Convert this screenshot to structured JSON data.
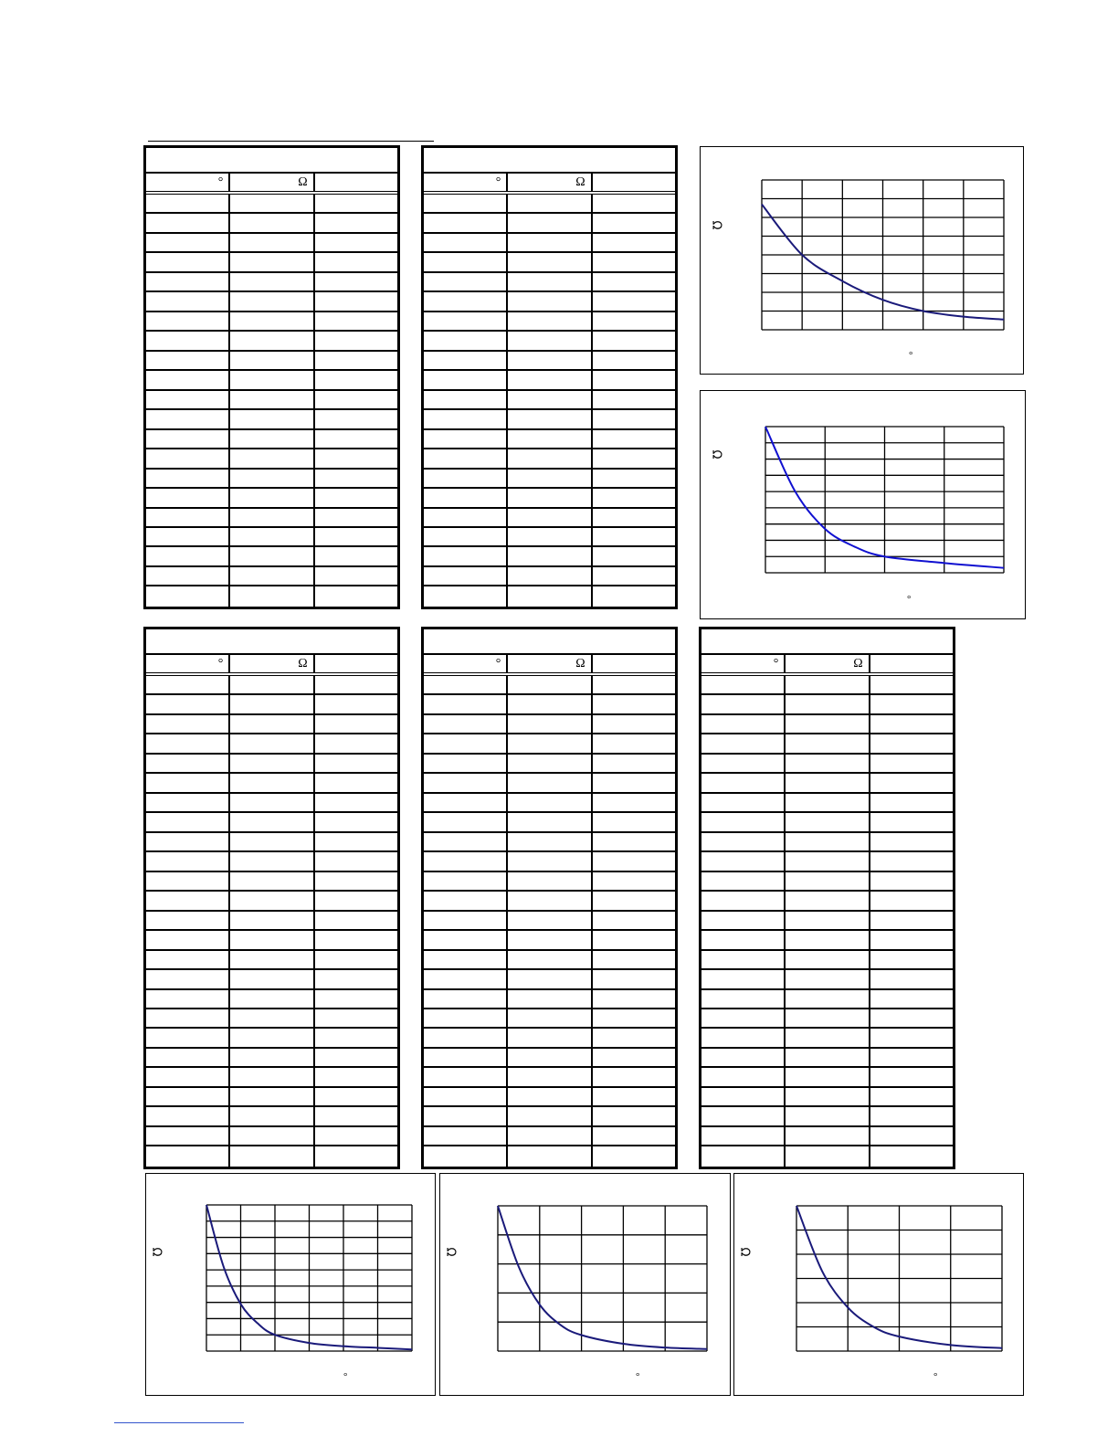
{
  "symbols": {
    "degree": "°",
    "ohm": "Ω"
  },
  "tables": [
    {
      "id": "t1",
      "headers": [
        "°",
        "Ω",
        ""
      ],
      "rows": 21
    },
    {
      "id": "t2",
      "headers": [
        "°",
        "Ω",
        ""
      ],
      "rows": 21
    },
    {
      "id": "t3",
      "headers": [
        "°",
        "Ω",
        ""
      ],
      "rows": 25
    },
    {
      "id": "t4",
      "headers": [
        "°",
        "Ω",
        ""
      ],
      "rows": 25
    },
    {
      "id": "t5",
      "headers": [
        "°",
        "Ω",
        ""
      ],
      "rows": 25
    }
  ],
  "chart_data": [
    {
      "type": "line",
      "xlabel": "°",
      "ylabel": "Ω",
      "grid": true,
      "xlim": [
        0,
        6
      ],
      "ylim": [
        0,
        8
      ],
      "x": [
        0,
        1,
        2,
        3,
        4,
        5,
        6
      ],
      "values": [
        6.7,
        4.0,
        2.6,
        1.6,
        1.0,
        0.7,
        0.55
      ],
      "line_color": "#1a1a7a"
    },
    {
      "type": "line",
      "xlabel": "°",
      "ylabel": "Ω",
      "grid": true,
      "xlim": [
        0,
        4
      ],
      "ylim": [
        0,
        9
      ],
      "x": [
        0,
        0.5,
        1,
        1.5,
        2,
        3,
        4
      ],
      "values": [
        9,
        5.0,
        2.7,
        1.6,
        1.0,
        0.6,
        0.3
      ],
      "line_color": "#1010d0"
    },
    {
      "type": "line",
      "xlabel": "°",
      "ylabel": "Ω",
      "grid": true,
      "xlim": [
        0,
        6
      ],
      "ylim": [
        0,
        9
      ],
      "x": [
        0,
        0.5,
        1,
        1.5,
        2,
        3,
        4,
        5,
        6
      ],
      "values": [
        9,
        5.2,
        2.9,
        1.7,
        1.0,
        0.5,
        0.3,
        0.2,
        0.1
      ],
      "line_color": "#1a1a7a"
    },
    {
      "type": "line",
      "xlabel": "°",
      "ylabel": "Ω",
      "grid": true,
      "xlim": [
        0,
        5
      ],
      "ylim": [
        0,
        5
      ],
      "x": [
        0,
        0.5,
        1,
        1.5,
        2,
        3,
        4,
        5
      ],
      "values": [
        5,
        2.9,
        1.6,
        0.9,
        0.55,
        0.25,
        0.12,
        0.07
      ],
      "line_color": "#1a1a7a"
    },
    {
      "type": "line",
      "xlabel": "°",
      "ylabel": "Ω",
      "grid": true,
      "xlim": [
        0,
        4
      ],
      "ylim": [
        0,
        6
      ],
      "x": [
        0,
        0.5,
        1,
        1.5,
        2,
        3,
        4
      ],
      "values": [
        6,
        3.3,
        1.8,
        1.0,
        0.6,
        0.25,
        0.12
      ],
      "line_color": "#1a1a7a"
    }
  ]
}
